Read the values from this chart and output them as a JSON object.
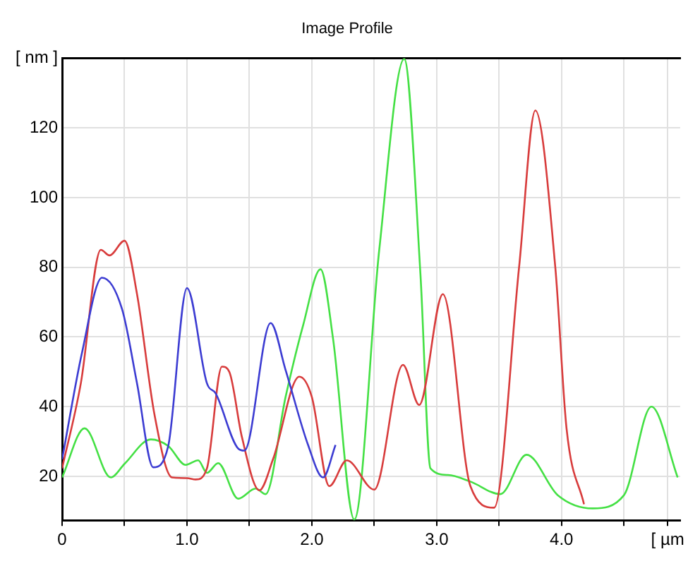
{
  "chart_data": {
    "type": "line",
    "title": "Image Profile",
    "xlim": [
      0,
      4.95
    ],
    "ylim": [
      7.4,
      140
    ],
    "xticks": [
      0,
      {
        "value": 0.5,
        "label": null
      },
      {
        "value": 1,
        "label": "1.0"
      },
      {
        "value": 1.5,
        "label": null
      },
      {
        "value": 2,
        "label": "2.0"
      },
      {
        "value": 2.5,
        "label": null
      },
      {
        "value": 3,
        "label": "3.0"
      },
      {
        "value": 3.5,
        "label": null
      },
      {
        "value": 4,
        "label": "4.0"
      },
      {
        "value": 4.5,
        "label": null
      },
      {
        "value": 4.85,
        "label": "[ µm"
      }
    ],
    "yticks": [
      20,
      40,
      60,
      80,
      100,
      120,
      {
        "value": 140,
        "label": "[ nm ]"
      }
    ],
    "grid": true,
    "legend": false,
    "marker": "none",
    "line_style": "solid",
    "series": [
      {
        "color": "#3c3cd2",
        "x": [
          0,
          0.16,
          0.32,
          0.48,
          0.6,
          0.73,
          0.85,
          1.0,
          1.16,
          1.23,
          1.41,
          1.46,
          1.67,
          1.79,
          1.97,
          2.09,
          2.19
        ],
        "values": [
          24.9,
          55.6,
          77,
          68,
          46.7,
          22.6,
          28.7,
          74,
          46.7,
          43.8,
          28,
          27.4,
          64,
          50.5,
          29,
          19.7,
          29
        ]
      },
      {
        "color": "#d83c3c",
        "x": [
          0,
          0.15,
          0.31,
          0.38,
          0.5,
          0.6,
          0.74,
          0.88,
          1.0,
          1.07,
          1.16,
          1.28,
          1.34,
          1.44,
          1.58,
          1.69,
          1.9,
          2.0,
          2.14,
          2.28,
          2.5,
          2.73,
          2.86,
          3.05,
          3.27,
          3.46,
          3.66,
          3.79,
          3.95,
          4.04,
          4.18
        ],
        "values": [
          22.3,
          46.7,
          85,
          83.4,
          87.6,
          72.3,
          37.7,
          19.7,
          19.5,
          19.1,
          22.3,
          51.5,
          49.9,
          31.3,
          16,
          25,
          48.6,
          42.8,
          17.2,
          24.6,
          16.2,
          52,
          40.5,
          72.3,
          17.2,
          11,
          80,
          125,
          80,
          33.8,
          12
        ]
      },
      {
        "color": "#44e044",
        "x": [
          0,
          0.18,
          0.39,
          0.5,
          0.71,
          0.85,
          0.99,
          1.09,
          1.16,
          1.25,
          1.41,
          1.55,
          1.63,
          1.79,
          1.93,
          2.07,
          2.17,
          2.34,
          2.54,
          2.74,
          2.87,
          2.95,
          3.09,
          3.27,
          3.51,
          3.72,
          3.97,
          4.25,
          4.5,
          4.72,
          4.93
        ],
        "values": [
          19.7,
          33.8,
          19.7,
          23.6,
          30.6,
          28.7,
          23.3,
          24.6,
          21,
          23.8,
          13.6,
          16.5,
          14.9,
          42.8,
          63.3,
          79.4,
          59.5,
          7.6,
          85,
          139.8,
          78,
          22.3,
          20.4,
          18.5,
          14.9,
          26.2,
          14.6,
          10.8,
          14.6,
          40,
          19.7
        ]
      }
    ]
  }
}
